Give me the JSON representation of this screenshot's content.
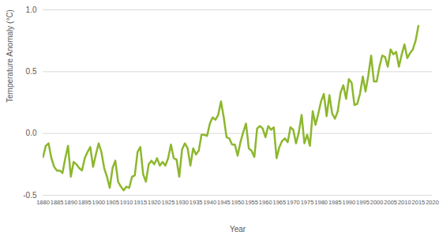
{
  "chart_data": {
    "type": "line",
    "x_label": "Year",
    "y_label": "Temperature Anomaly (°C)",
    "x": [
      1880,
      1881,
      1882,
      1883,
      1884,
      1885,
      1886,
      1887,
      1888,
      1889,
      1890,
      1891,
      1892,
      1893,
      1894,
      1895,
      1896,
      1897,
      1898,
      1899,
      1900,
      1901,
      1902,
      1903,
      1904,
      1905,
      1906,
      1907,
      1908,
      1909,
      1910,
      1911,
      1912,
      1913,
      1914,
      1915,
      1916,
      1917,
      1918,
      1919,
      1920,
      1921,
      1922,
      1923,
      1924,
      1925,
      1926,
      1927,
      1928,
      1929,
      1930,
      1931,
      1932,
      1933,
      1934,
      1935,
      1936,
      1937,
      1938,
      1939,
      1940,
      1941,
      1942,
      1943,
      1944,
      1945,
      1946,
      1947,
      1948,
      1949,
      1950,
      1951,
      1952,
      1953,
      1954,
      1955,
      1956,
      1957,
      1958,
      1959,
      1960,
      1961,
      1962,
      1963,
      1964,
      1965,
      1966,
      1967,
      1968,
      1969,
      1970,
      1971,
      1972,
      1973,
      1974,
      1975,
      1976,
      1977,
      1978,
      1979,
      1980,
      1981,
      1982,
      1983,
      1984,
      1985,
      1986,
      1987,
      1988,
      1989,
      1990,
      1991,
      1992,
      1993,
      1994,
      1995,
      1996,
      1997,
      1998,
      1999,
      2000,
      2001,
      2002,
      2003,
      2004,
      2005,
      2006,
      2007,
      2008,
      2009,
      2010,
      2011,
      2012,
      2013,
      2014,
      2015
    ],
    "values": [
      -0.19,
      -0.1,
      -0.08,
      -0.2,
      -0.27,
      -0.3,
      -0.3,
      -0.32,
      -0.2,
      -0.1,
      -0.35,
      -0.23,
      -0.25,
      -0.28,
      -0.3,
      -0.2,
      -0.15,
      -0.11,
      -0.27,
      -0.17,
      -0.08,
      -0.15,
      -0.28,
      -0.35,
      -0.44,
      -0.28,
      -0.22,
      -0.39,
      -0.43,
      -0.46,
      -0.43,
      -0.44,
      -0.35,
      -0.34,
      -0.15,
      -0.11,
      -0.33,
      -0.39,
      -0.25,
      -0.22,
      -0.25,
      -0.2,
      -0.26,
      -0.23,
      -0.26,
      -0.2,
      -0.09,
      -0.2,
      -0.21,
      -0.35,
      -0.13,
      -0.08,
      -0.12,
      -0.26,
      -0.12,
      -0.17,
      -0.14,
      -0.01,
      -0.01,
      -0.02,
      0.08,
      0.13,
      0.11,
      0.15,
      0.26,
      0.13,
      -0.03,
      -0.04,
      -0.09,
      -0.09,
      -0.18,
      -0.07,
      0.01,
      0.08,
      -0.12,
      -0.14,
      -0.19,
      0.04,
      0.06,
      0.04,
      -0.03,
      0.06,
      0.03,
      0.05,
      -0.2,
      -0.11,
      -0.06,
      -0.04,
      -0.07,
      0.05,
      0.03,
      -0.08,
      0.01,
      0.15,
      -0.08,
      -0.01,
      -0.1,
      0.18,
      0.07,
      0.16,
      0.26,
      0.32,
      0.14,
      0.31,
      0.16,
      0.12,
      0.18,
      0.33,
      0.39,
      0.28,
      0.44,
      0.41,
      0.23,
      0.24,
      0.32,
      0.46,
      0.34,
      0.47,
      0.63,
      0.42,
      0.42,
      0.54,
      0.63,
      0.62,
      0.54,
      0.68,
      0.64,
      0.66,
      0.54,
      0.64,
      0.72,
      0.61,
      0.65,
      0.68,
      0.75,
      0.87
    ],
    "color": "#8db72e",
    "xlim": [
      1880,
      2020
    ],
    "xticks": [
      1880,
      1885,
      1890,
      1895,
      1900,
      1905,
      1910,
      1915,
      1920,
      1925,
      1930,
      1935,
      1940,
      1945,
      1950,
      1955,
      1960,
      1965,
      1970,
      1975,
      1980,
      1985,
      1990,
      1995,
      2000,
      2005,
      2010,
      2015,
      2020
    ],
    "ylim": [
      -0.5,
      1.0
    ],
    "yticks": [
      -0.5,
      {
        "value": 0,
        "label": "0.0"
      },
      0.5,
      {
        "value": 1,
        "label": "1.0"
      }
    ],
    "grid": true
  }
}
